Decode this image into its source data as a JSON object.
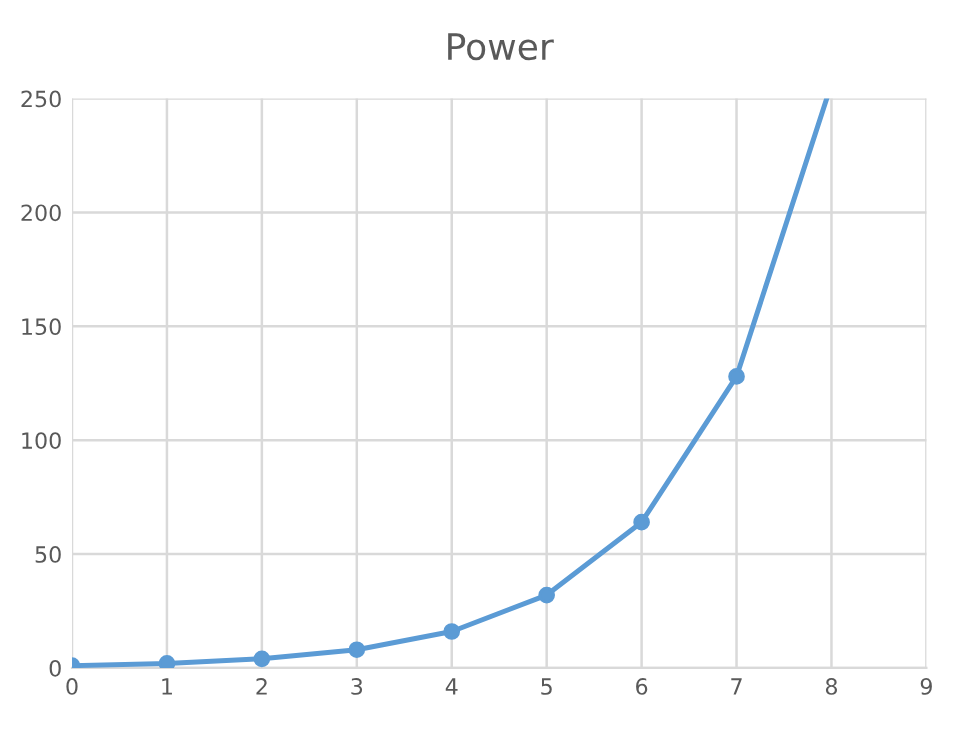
{
  "chart_data": {
    "type": "line",
    "title": "Power",
    "series": [
      {
        "type": "line",
        "color": "#5b9bd5",
        "marker": "none",
        "x": [
          0,
          1,
          2,
          3,
          4,
          5,
          6,
          7,
          7.95
        ],
        "values": [
          1,
          2,
          4,
          8,
          16,
          32,
          64,
          128,
          250
        ]
      },
      {
        "type": "scatter",
        "color": "#5b9bd5",
        "marker": "circle",
        "x": [
          0,
          1,
          2,
          3,
          4,
          5,
          6,
          7
        ],
        "values": [
          1,
          2,
          4,
          8,
          16,
          32,
          64,
          128
        ]
      }
    ],
    "xlim": [
      0,
      9
    ],
    "xticks": [
      0,
      1,
      2,
      3,
      4,
      5,
      6,
      7,
      8,
      9
    ],
    "ylim": [
      0,
      250
    ],
    "yticks": [
      0,
      50,
      100,
      150,
      200,
      250
    ],
    "grid": true,
    "legend": false
  }
}
